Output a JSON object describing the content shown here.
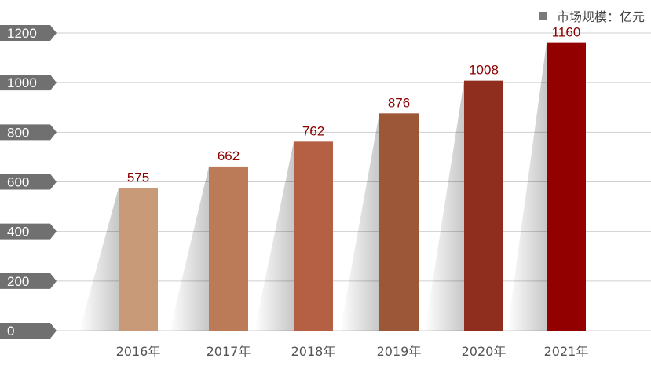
{
  "chart_data": {
    "type": "bar",
    "categories": [
      "2016年",
      "2017年",
      "2018年",
      "2019年",
      "2020年",
      "2021年"
    ],
    "values": [
      575,
      662,
      762,
      876,
      1008,
      1160
    ],
    "series": [
      {
        "name": "市场规模：亿元",
        "values": [
          575,
          662,
          762,
          876,
          1008,
          1160
        ]
      }
    ],
    "data_labels": [
      "575",
      "662",
      "762",
      "876",
      "1008",
      "1160"
    ],
    "y_ticks": [
      0,
      200,
      400,
      600,
      800,
      1000,
      1200
    ],
    "y_tick_labels": [
      "0",
      "200",
      "400",
      "600",
      "800",
      "1000",
      "1200"
    ],
    "ylim": [
      0,
      1200
    ],
    "grid": true,
    "legend": {
      "label": "市场规模：亿元",
      "position": "top-right",
      "color": "#7a7a7a"
    },
    "bar_colors": [
      "#c89a78",
      "#bb7a58",
      "#b55f45",
      "#9c5638",
      "#8f2e1e",
      "#920000"
    ],
    "label_color": "#8b0000",
    "axis_label_color": "#555555",
    "tick_badge_color": "#707070",
    "grid_color": "#cfcfcf"
  }
}
